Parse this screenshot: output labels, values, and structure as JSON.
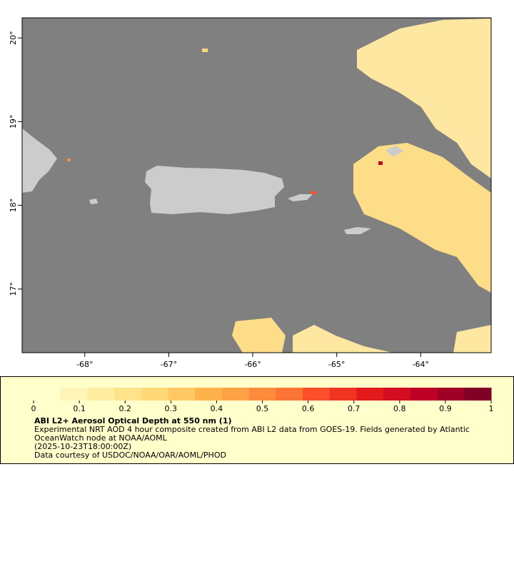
{
  "map": {
    "xlim": [
      -68.746,
      -63.161
    ],
    "ylim": [
      16.24,
      20.24
    ],
    "xticks": [
      {
        "value": -68,
        "label": "-68°"
      },
      {
        "value": -67,
        "label": "-67°"
      },
      {
        "value": -66,
        "label": "-66°"
      },
      {
        "value": -65,
        "label": "-65°"
      },
      {
        "value": -64,
        "label": "-64°"
      }
    ],
    "yticks": [
      {
        "value": 17,
        "label": "17°"
      },
      {
        "value": 18,
        "label": "18°"
      },
      {
        "value": 19,
        "label": "19°"
      },
      {
        "value": 20,
        "label": "20°"
      }
    ]
  },
  "colorbar": {
    "range": [
      0,
      1
    ],
    "ticks": [
      0,
      0.1,
      0.2,
      0.3,
      0.4,
      0.5,
      0.6,
      0.7,
      0.8,
      0.9,
      1
    ],
    "colors": [
      "#ffffcc",
      "#fff5b8",
      "#ffeda0",
      "#fee38a",
      "#fed976",
      "#fec965",
      "#feb24c",
      "#fea345",
      "#fd8d3c",
      "#fd7535",
      "#fc4e2a",
      "#f03523",
      "#e31a1c",
      "#d20d22",
      "#bd0026",
      "#a10026",
      "#800026"
    ]
  },
  "legend": {
    "title": "ABI L2+ Aerosol Optical Depth at 550 nm (1)",
    "lines": [
      "Experimental NRT AOD 4 hour composite created from ABI L2 data from GOES-19. Fields generated by Atlantic",
      "OceanWatch node at NOAA/AOML",
      "(2025-10-23T18:00:00Z)",
      "Data courtesy of USDOC/NOAA/OAR/AOML/PHOD"
    ]
  }
}
